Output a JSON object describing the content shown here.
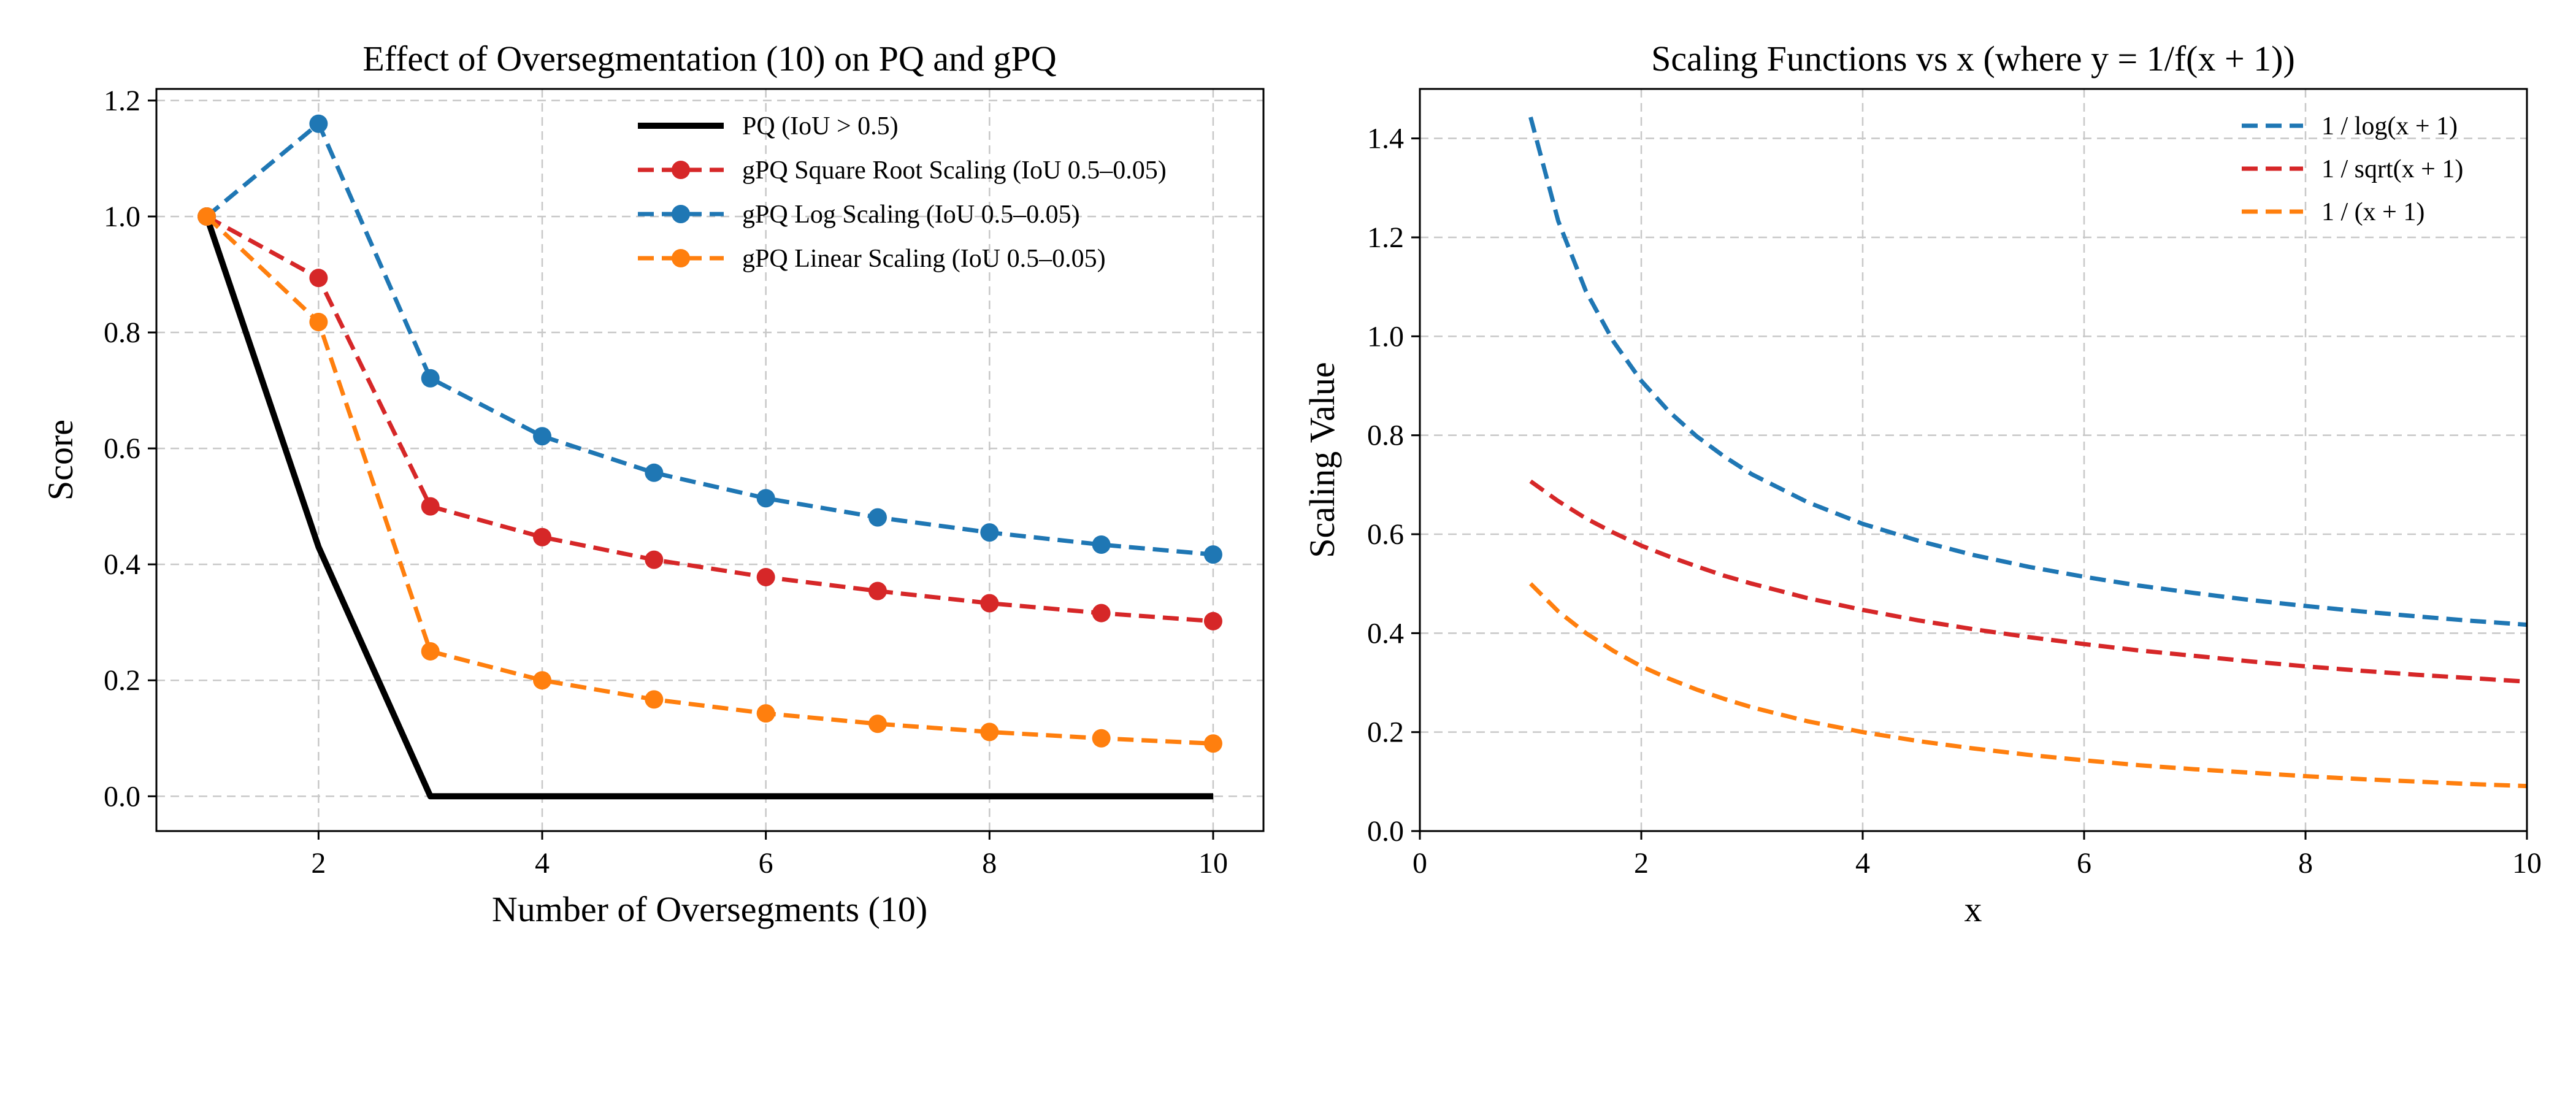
{
  "chart_data": [
    {
      "type": "line",
      "title": "Effect of Oversegmentation (10) on PQ and gPQ",
      "xlabel": "Number of Oversegments (10)",
      "ylabel": "Score",
      "xlim": [
        0.55,
        10.45
      ],
      "ylim": [
        -0.06,
        1.22
      ],
      "xticks": [
        2,
        4,
        6,
        8,
        10
      ],
      "yticks": [
        0.0,
        0.2,
        0.4,
        0.6,
        0.8,
        1.0,
        1.2
      ],
      "ytick_labels": [
        "0.0",
        "0.2",
        "0.4",
        "0.6",
        "0.8",
        "1.0",
        "1.2"
      ],
      "grid": true,
      "legend_position": "upper-right",
      "x": [
        1,
        2,
        3,
        4,
        5,
        6,
        7,
        8,
        9,
        10
      ],
      "series": [
        {
          "name": "PQ (IoU > 0.5)",
          "color": "#000000",
          "style": "solid",
          "marker": false,
          "values": [
            1.0,
            0.43,
            0.0,
            0.0,
            0.0,
            0.0,
            0.0,
            0.0,
            0.0,
            0.0
          ]
        },
        {
          "name": "gPQ Square Root Scaling (IoU 0.5–0.05)",
          "color": "#d62728",
          "style": "dashed",
          "marker": true,
          "values": [
            1.0,
            0.894,
            0.5,
            0.447,
            0.408,
            0.378,
            0.354,
            0.333,
            0.316,
            0.302
          ]
        },
        {
          "name": "gPQ Log Scaling (IoU 0.5–0.05)",
          "color": "#1f77b4",
          "style": "dashed",
          "marker": true,
          "values": [
            1.0,
            1.16,
            0.721,
            0.621,
            0.558,
            0.514,
            0.481,
            0.455,
            0.434,
            0.417
          ]
        },
        {
          "name": "gPQ Linear Scaling (IoU 0.5–0.05)",
          "color": "#ff7f0e",
          "style": "dashed",
          "marker": true,
          "values": [
            1.0,
            0.818,
            0.25,
            0.2,
            0.167,
            0.143,
            0.125,
            0.111,
            0.1,
            0.091
          ]
        }
      ]
    },
    {
      "type": "line",
      "title": "Scaling Functions vs x (where y = 1/f(x + 1))",
      "xlabel": "x",
      "ylabel": "Scaling Value",
      "xlim": [
        0,
        10
      ],
      "ylim": [
        0,
        1.5
      ],
      "xticks": [
        0,
        2,
        4,
        6,
        8,
        10
      ],
      "yticks": [
        0.0,
        0.2,
        0.4,
        0.6,
        0.8,
        1.0,
        1.2,
        1.4
      ],
      "ytick_labels": [
        "0.0",
        "0.2",
        "0.4",
        "0.6",
        "0.8",
        "1.0",
        "1.2",
        "1.4"
      ],
      "grid": true,
      "legend_position": "upper-right",
      "x": [
        1,
        1.25,
        1.5,
        1.75,
        2,
        2.25,
        2.5,
        2.75,
        3,
        3.5,
        4,
        4.5,
        5,
        5.5,
        6,
        6.5,
        7,
        7.5,
        8,
        8.5,
        9,
        9.5,
        10
      ],
      "series": [
        {
          "name": "1 / log(x + 1)",
          "color": "#1f77b4",
          "style": "dashed",
          "marker": false,
          "values": [
            1.443,
            1.233,
            1.091,
            0.989,
            0.91,
            0.848,
            0.798,
            0.757,
            0.721,
            0.665,
            0.621,
            0.587,
            0.558,
            0.534,
            0.514,
            0.496,
            0.481,
            0.467,
            0.455,
            0.444,
            0.434,
            0.425,
            0.417
          ]
        },
        {
          "name": "1 / sqrt(x + 1)",
          "color": "#d62728",
          "style": "dashed",
          "marker": false,
          "values": [
            0.707,
            0.667,
            0.632,
            0.603,
            0.577,
            0.555,
            0.535,
            0.516,
            0.5,
            0.471,
            0.447,
            0.426,
            0.408,
            0.392,
            0.378,
            0.365,
            0.354,
            0.343,
            0.333,
            0.324,
            0.316,
            0.309,
            0.302
          ]
        },
        {
          "name": "1 / (x + 1)",
          "color": "#ff7f0e",
          "style": "dashed",
          "marker": false,
          "values": [
            0.5,
            0.444,
            0.4,
            0.364,
            0.333,
            0.308,
            0.286,
            0.267,
            0.25,
            0.222,
            0.2,
            0.182,
            0.167,
            0.154,
            0.143,
            0.133,
            0.125,
            0.118,
            0.111,
            0.105,
            0.1,
            0.095,
            0.091
          ]
        }
      ]
    }
  ]
}
